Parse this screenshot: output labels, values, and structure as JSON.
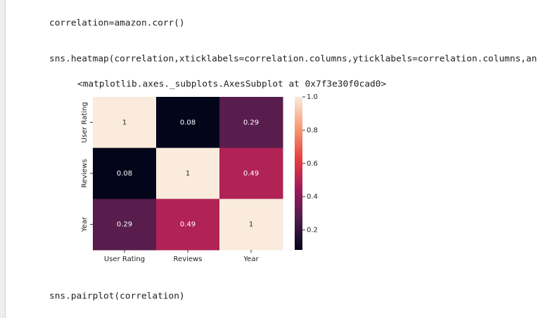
{
  "cells": [
    {
      "code": "correlation=amazon.corr()"
    },
    {
      "code": "sns.heatmap(correlation,xticklabels=correlation.columns,yticklabels=correlation.columns,an",
      "output": "<matplotlib.axes._subplots.AxesSubplot at 0x7f3e30f0cad0>"
    },
    {
      "code": "sns.pairplot(correlation)"
    }
  ],
  "chart_data": {
    "type": "heatmap",
    "x_categories": [
      "User Rating",
      "Reviews",
      "Year"
    ],
    "y_categories": [
      "User Rating",
      "Reviews",
      "Year"
    ],
    "values": [
      [
        1,
        0.08,
        0.29
      ],
      [
        0.08,
        1,
        0.49
      ],
      [
        0.29,
        0.49,
        1
      ]
    ],
    "colormap": [
      "#03051a",
      "#4c1d4b",
      "#a11a5b",
      "#e83f3f",
      "#f69c73",
      "#faebdd"
    ],
    "clim": [
      0.08,
      1
    ],
    "colorbar_ticks": [
      0.2,
      0.4,
      0.6,
      0.8,
      {
        "value": 1,
        "label": "1.0"
      }
    ]
  }
}
